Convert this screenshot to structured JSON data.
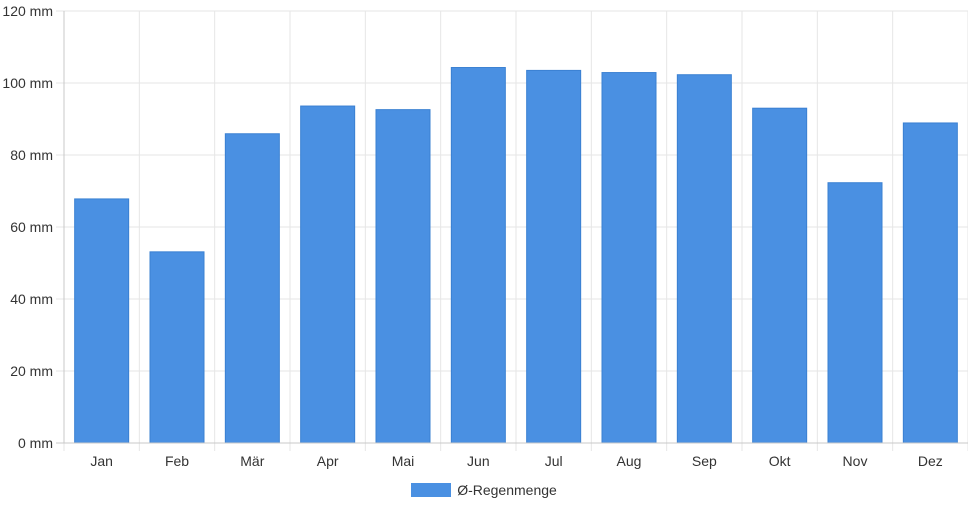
{
  "chart_data": {
    "type": "bar",
    "categories": [
      "Jan",
      "Feb",
      "Mär",
      "Apr",
      "Mai",
      "Jun",
      "Jul",
      "Aug",
      "Sep",
      "Okt",
      "Nov",
      "Dez"
    ],
    "series": [
      {
        "name": "Ø-Regenmenge",
        "values": [
          67.8,
          53.1,
          85.9,
          93.6,
          92.6,
          104.3,
          103.5,
          102.9,
          102.3,
          93.0,
          72.3,
          88.9
        ],
        "color": "#4a90e2"
      }
    ],
    "title": "",
    "xlabel": "",
    "ylabel": "",
    "ylim": [
      0,
      120
    ],
    "yticks": [
      0,
      20,
      40,
      60,
      80,
      100,
      120
    ],
    "y_unit": "mm",
    "grid": true,
    "legend_position": "bottom"
  }
}
